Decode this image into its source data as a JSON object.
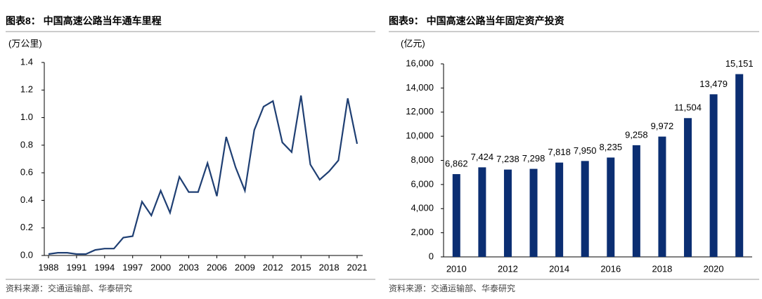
{
  "chart_data": [
    {
      "type": "line",
      "title": "图表8： 中国高速公路当年通车里程",
      "y_label": "(万公里)",
      "source": "资料来源：交通运输部、华泰研究",
      "color": "#1f3f73",
      "x": [
        1988,
        1989,
        1990,
        1991,
        1992,
        1993,
        1994,
        1995,
        1996,
        1997,
        1998,
        1999,
        2000,
        2001,
        2002,
        2003,
        2004,
        2005,
        2006,
        2007,
        2008,
        2009,
        2010,
        2011,
        2012,
        2013,
        2014,
        2015,
        2016,
        2017,
        2018,
        2019,
        2020,
        2021
      ],
      "values": [
        0.01,
        0.02,
        0.02,
        0.01,
        0.01,
        0.04,
        0.05,
        0.05,
        0.13,
        0.14,
        0.39,
        0.29,
        0.47,
        0.31,
        0.57,
        0.46,
        0.46,
        0.67,
        0.43,
        0.86,
        0.64,
        0.47,
        0.91,
        1.08,
        1.12,
        0.82,
        0.75,
        1.16,
        0.66,
        0.55,
        0.61,
        0.69,
        1.14,
        0.81
      ],
      "xlim": [
        1988,
        2021
      ],
      "xticks": [
        1988,
        1991,
        1994,
        1997,
        2000,
        2003,
        2006,
        2009,
        2012,
        2015,
        2018,
        2021
      ],
      "ylim": [
        0,
        1.4
      ],
      "yticks": [
        {
          "value": 0,
          "label": "0.0"
        },
        0.2,
        0.4,
        0.6,
        0.8,
        {
          "value": 1,
          "label": "1.0"
        },
        1.2,
        1.4
      ]
    },
    {
      "type": "bar",
      "title": "图表9： 中国高速公路当年固定资产投资",
      "y_label": "(亿元)",
      "source": "资料来源：交通运输部、华泰研究",
      "color": "#0b2e72",
      "categories": [
        "2010",
        null,
        "2012",
        null,
        "2014",
        null,
        "2016",
        null,
        "2018",
        null,
        "2020",
        null
      ],
      "values": [
        6862,
        7424,
        7238,
        7298,
        7818,
        7950,
        8235,
        9258,
        9972,
        11504,
        13479,
        15151
      ],
      "value_labels": [
        "6,862",
        "7,424",
        "7,238",
        "7,298",
        "7,818",
        "7,950",
        "8,235",
        "9,258",
        "9,972",
        "11,504",
        "13,479",
        "15,151"
      ],
      "ylim": [
        0,
        16000
      ],
      "yticks": [
        0,
        {
          "value": 2000,
          "label": "2,000"
        },
        {
          "value": 4000,
          "label": "4,000"
        },
        {
          "value": 6000,
          "label": "6,000"
        },
        {
          "value": 8000,
          "label": "8,000"
        },
        {
          "value": 10000,
          "label": "10,000"
        },
        {
          "value": 12000,
          "label": "12,000"
        },
        {
          "value": 14000,
          "label": "14,000"
        },
        {
          "value": 16000,
          "label": "16,000"
        }
      ]
    }
  ]
}
